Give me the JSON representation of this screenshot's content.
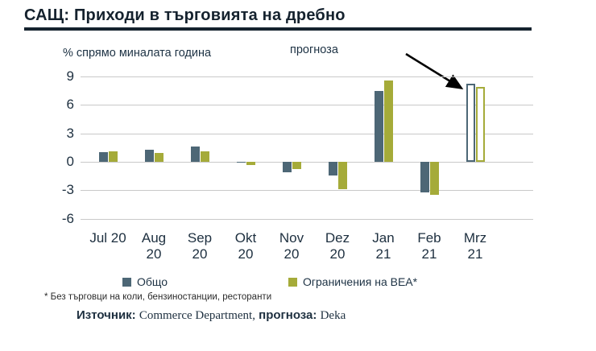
{
  "title": "САЩ: Приходи в търговията на дребно",
  "axis_note": "% спрямо миналата година",
  "forecast_annotation": "прогноза",
  "footnote": "* Без търговци на коли, бензиностанции, ресторанти",
  "source": {
    "label": "Източник:",
    "value": "Commerce Department,",
    "forecast_label": "прогноза:",
    "forecast_value": "Deka"
  },
  "colors": {
    "total": "#4d6776",
    "bea": "#a5ab39",
    "title": "#15222e",
    "grid": "#c9c9c9",
    "text": "#1d2f3f",
    "arrow": "#000000"
  },
  "chart_data": {
    "type": "bar",
    "categories": [
      "Jul 20",
      "Aug\n20",
      "Sep\n20",
      "Okt\n20",
      "Nov\n20",
      "Dez\n20",
      "Jan\n21",
      "Feb\n21",
      "Mrz\n21"
    ],
    "series": [
      {
        "name": "Общо",
        "color": "#4d6776",
        "values": [
          1.0,
          1.3,
          1.6,
          -0.1,
          -1.1,
          -1.4,
          7.5,
          -3.2,
          8.2
        ]
      },
      {
        "name": "Ограничения на BEA*",
        "color": "#a5ab39",
        "values": [
          1.1,
          0.9,
          1.1,
          -0.3,
          -0.8,
          -2.9,
          8.6,
          -3.5,
          7.9
        ]
      }
    ],
    "title": "САЩ: Приходи в търговията на дребно",
    "ylabel": "% спрямо миналата година",
    "xlabel": "",
    "ylim": [
      -6,
      9
    ],
    "yticks": [
      9,
      6,
      3,
      0,
      -3,
      -6
    ],
    "grid": true,
    "legend_position": "bottom",
    "forecast_index": 8,
    "forecast_style": "outlined"
  }
}
